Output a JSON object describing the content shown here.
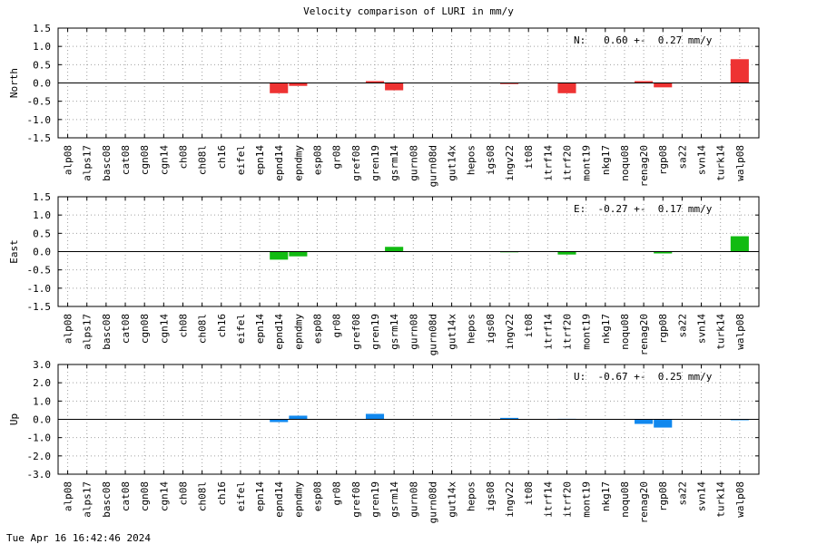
{
  "title": "Velocity comparison of LURI in mm/y",
  "timestamp": "Tue Apr 16 16:42:46 2024",
  "chart_data": [
    {
      "type": "bar",
      "ylabel": "North",
      "annotation": "N:   0.60 +-  0.27 mm/y",
      "color": "#ee3333",
      "ylim": [
        -1.5,
        1.5
      ],
      "yticks": [
        "1.5",
        "1.0",
        "0.5",
        "0.0",
        "-0.5",
        "-1.0",
        "-1.5"
      ],
      "categories": [
        "alp08",
        "alps17",
        "basc08",
        "cat08",
        "cgn08",
        "cgn14",
        "ch08",
        "ch08l",
        "ch16",
        "eifel",
        "epn14",
        "epnd14",
        "epndmy",
        "esp08",
        "gr08",
        "gref08",
        "gren19",
        "gsrm14",
        "gurn08",
        "gurn08d",
        "gut14x",
        "hepos",
        "igs08",
        "ingv22",
        "it08",
        "itrf14",
        "itrf20",
        "mont19",
        "nkg17",
        "noqu08",
        "renag20",
        "rgp08",
        "sa22",
        "svn14",
        "turk14",
        "walp08"
      ],
      "values": [
        0,
        0,
        0,
        0,
        0,
        0,
        0,
        0,
        0,
        0,
        0,
        -0.28,
        -0.08,
        0,
        0,
        0,
        0.05,
        -0.2,
        0,
        0,
        0,
        0,
        0,
        -0.03,
        0,
        0,
        -0.28,
        0,
        0,
        0,
        0.05,
        -0.12,
        0,
        0,
        0,
        0.65
      ],
      "grid": true
    },
    {
      "type": "bar",
      "ylabel": "East",
      "annotation": "E:  -0.27 +-  0.17 mm/y",
      "color": "#11bb11",
      "ylim": [
        -1.5,
        1.5
      ],
      "yticks": [
        "1.5",
        "1.0",
        "0.5",
        "0.0",
        "-0.5",
        "-1.0",
        "-1.5"
      ],
      "categories": [
        "alp08",
        "alps17",
        "basc08",
        "cat08",
        "cgn08",
        "cgn14",
        "ch08",
        "ch08l",
        "ch16",
        "eifel",
        "epn14",
        "epnd14",
        "epndmy",
        "esp08",
        "gr08",
        "gref08",
        "gren19",
        "gsrm14",
        "gurn08",
        "gurn08d",
        "gut14x",
        "hepos",
        "igs08",
        "ingv22",
        "it08",
        "itrf14",
        "itrf20",
        "mont19",
        "nkg17",
        "noqu08",
        "renag20",
        "rgp08",
        "sa22",
        "svn14",
        "turk14",
        "walp08"
      ],
      "values": [
        0,
        0,
        0,
        0,
        0,
        0,
        0,
        0,
        0,
        0,
        0,
        -0.22,
        -0.13,
        0,
        0,
        0,
        0,
        0.13,
        0,
        0,
        0,
        0,
        0,
        -0.02,
        0,
        0,
        -0.08,
        0,
        0,
        0,
        0,
        -0.05,
        0,
        0,
        0,
        0.42
      ],
      "grid": true
    },
    {
      "type": "bar",
      "ylabel": "Up",
      "annotation": "U:  -0.67 +-  0.25 mm/y",
      "color": "#1188ee",
      "ylim": [
        -3.0,
        3.0
      ],
      "yticks": [
        "3.0",
        "2.0",
        "1.0",
        "0.0",
        "-1.0",
        "-2.0",
        "-3.0"
      ],
      "categories": [
        "alp08",
        "alps17",
        "basc08",
        "cat08",
        "cgn08",
        "cgn14",
        "ch08",
        "ch08l",
        "ch16",
        "eifel",
        "epn14",
        "epnd14",
        "epndmy",
        "esp08",
        "gr08",
        "gref08",
        "gren19",
        "gsrm14",
        "gurn08",
        "gurn08d",
        "gut14x",
        "hepos",
        "igs08",
        "ingv22",
        "it08",
        "itrf14",
        "itrf20",
        "mont19",
        "nkg17",
        "noqu08",
        "renag20",
        "rgp08",
        "sa22",
        "svn14",
        "turk14",
        "walp08"
      ],
      "values": [
        0,
        0,
        0,
        0,
        0,
        0,
        0,
        0,
        0,
        0,
        0,
        -0.15,
        0.2,
        0,
        0,
        0,
        0.3,
        0,
        0,
        0,
        0,
        0,
        0,
        0.08,
        0,
        0,
        0.03,
        0,
        0,
        0,
        -0.25,
        -0.45,
        0,
        0,
        0,
        -0.05
      ],
      "grid": true
    }
  ]
}
